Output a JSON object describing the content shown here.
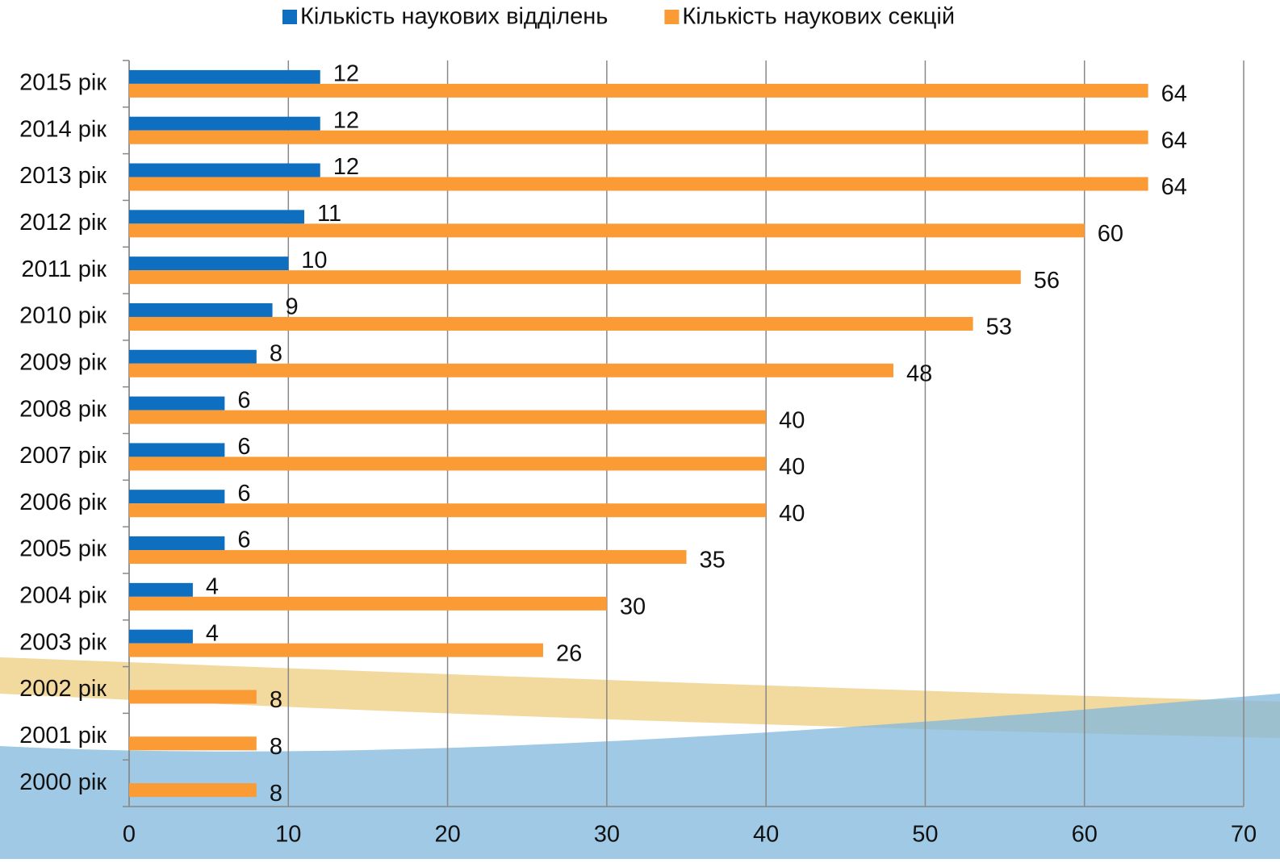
{
  "chart_data": {
    "type": "bar",
    "orientation": "horizontal",
    "categories": [
      "2015 рік",
      "2014 рік",
      "2013 рік",
      "2012 рік",
      "2011 рік",
      "2010 рік",
      "2009 рік",
      "2008 рік",
      "2007 рік",
      "2006 рік",
      "2005 рік",
      "2004 рік",
      "2003 рік",
      "2002 рік",
      "2001 рік",
      "2000 рік"
    ],
    "series": [
      {
        "name": "Кількість наукових відділень",
        "color": "#0e6fc1",
        "values": [
          12,
          12,
          12,
          11,
          10,
          9,
          8,
          6,
          6,
          6,
          6,
          4,
          4,
          null,
          null,
          null
        ]
      },
      {
        "name": "Кількість наукових секцій",
        "color": "#fb9b36",
        "values": [
          64,
          64,
          64,
          60,
          56,
          53,
          48,
          40,
          40,
          40,
          35,
          30,
          26,
          8,
          8,
          8
        ]
      }
    ],
    "xlim": [
      0,
      70
    ],
    "xticks": [
      0,
      10,
      20,
      30,
      40,
      50,
      60,
      70
    ],
    "grid": true,
    "legend": "top"
  }
}
